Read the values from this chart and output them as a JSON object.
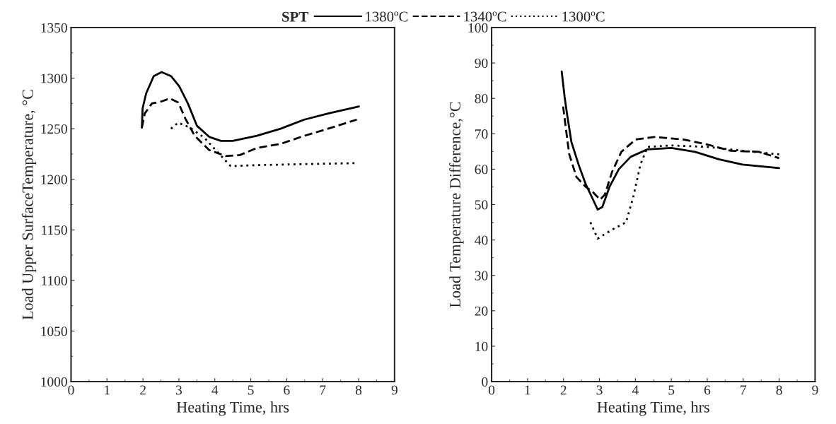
{
  "chart_data": [
    {
      "type": "line",
      "xlabel": "Heating Time, hrs",
      "ylabel": "Load Upper SurfaceTemperature, °C",
      "legend_title": "SPT",
      "legend": "top",
      "xlim": [
        0,
        9
      ],
      "xticks": [
        0,
        1,
        2,
        3,
        4,
        5,
        6,
        7,
        8,
        9
      ],
      "ylim": [
        1000,
        1350
      ],
      "yticks": [
        1000,
        1050,
        1100,
        1150,
        1200,
        1250,
        1300,
        1350
      ],
      "grid": false,
      "series": [
        {
          "name": "1380ºC",
          "color": "#000000",
          "line_style": "solid",
          "x": [
            1.97,
            1.99,
            2.09,
            2.3,
            2.52,
            2.78,
            3.01,
            3.25,
            3.5,
            3.84,
            4.17,
            4.5,
            5.17,
            5.83,
            6.49,
            7.15,
            8.01
          ],
          "values": [
            1251,
            1270,
            1285,
            1302,
            1306,
            1302,
            1292,
            1275,
            1253,
            1242,
            1238,
            1238,
            1243,
            1250,
            1259,
            1265,
            1272
          ]
        },
        {
          "name": "1340ºC",
          "color": "#000000",
          "line_style": "dashed",
          "x": [
            1.97,
            2.05,
            2.25,
            2.52,
            2.75,
            2.98,
            3.18,
            3.44,
            3.84,
            4.3,
            4.7,
            5.17,
            5.83,
            6.49,
            7.15,
            7.95
          ],
          "values": [
            1251,
            1265,
            1275,
            1277,
            1280,
            1276,
            1260,
            1243,
            1229,
            1223,
            1224,
            1231,
            1235,
            1243,
            1250,
            1259
          ]
        },
        {
          "name": "1300ºC",
          "color": "#000000",
          "line_style": "dotted",
          "x": [
            2.78,
            2.98,
            3.31,
            3.71,
            4.1,
            4.44,
            5.17,
            6.49,
            7.95
          ],
          "values": [
            1250,
            1256,
            1251,
            1241,
            1226,
            1213,
            1214,
            1215,
            1216
          ]
        }
      ]
    },
    {
      "type": "line",
      "xlabel": "Heating Time, hrs",
      "ylabel": "Load Temperature Difference,°C",
      "xlim": [
        0,
        9
      ],
      "xticks": [
        0,
        1,
        2,
        3,
        4,
        5,
        6,
        7,
        8,
        9
      ],
      "ylim": [
        0,
        100
      ],
      "yticks": [
        0,
        10,
        20,
        30,
        40,
        50,
        60,
        70,
        80,
        90,
        100
      ],
      "grid": false,
      "series": [
        {
          "color": "#000000",
          "line_style": "solid",
          "x": [
            1.95,
            2.03,
            2.1,
            2.22,
            2.42,
            2.62,
            2.79,
            2.95,
            3.08,
            3.28,
            3.54,
            3.87,
            4.34,
            5.0,
            5.66,
            6.32,
            6.98,
            8.0
          ],
          "values": [
            87.6,
            80.5,
            75.5,
            67.7,
            61.3,
            55.7,
            52.1,
            48.6,
            49.3,
            55,
            60,
            63.5,
            65.6,
            66,
            64.9,
            62.8,
            61.3,
            60.3
          ]
        },
        {
          "color": "#000000",
          "line_style": "dashed",
          "x": [
            1.99,
            2.06,
            2.16,
            2.36,
            2.62,
            2.82,
            3.02,
            3.15,
            3.35,
            3.61,
            4.01,
            4.53,
            5.33,
            5.99,
            6.65,
            7.44,
            8.0
          ],
          "values": [
            77.7,
            72,
            64.2,
            57.8,
            55,
            53.5,
            51.4,
            52.8,
            59.2,
            64.9,
            68.4,
            69.1,
            68.4,
            67,
            65.2,
            64.9,
            63.1
          ]
        },
        {
          "color": "#000000",
          "line_style": "dotted",
          "x": [
            2.75,
            2.95,
            3.35,
            3.74,
            3.94,
            4.14,
            4.34,
            5.0,
            5.99,
            6.98,
            8.0
          ],
          "values": [
            45,
            40.4,
            42.9,
            45,
            52.1,
            61.3,
            66.3,
            66.7,
            66.3,
            65.2,
            64.2
          ]
        }
      ]
    }
  ]
}
